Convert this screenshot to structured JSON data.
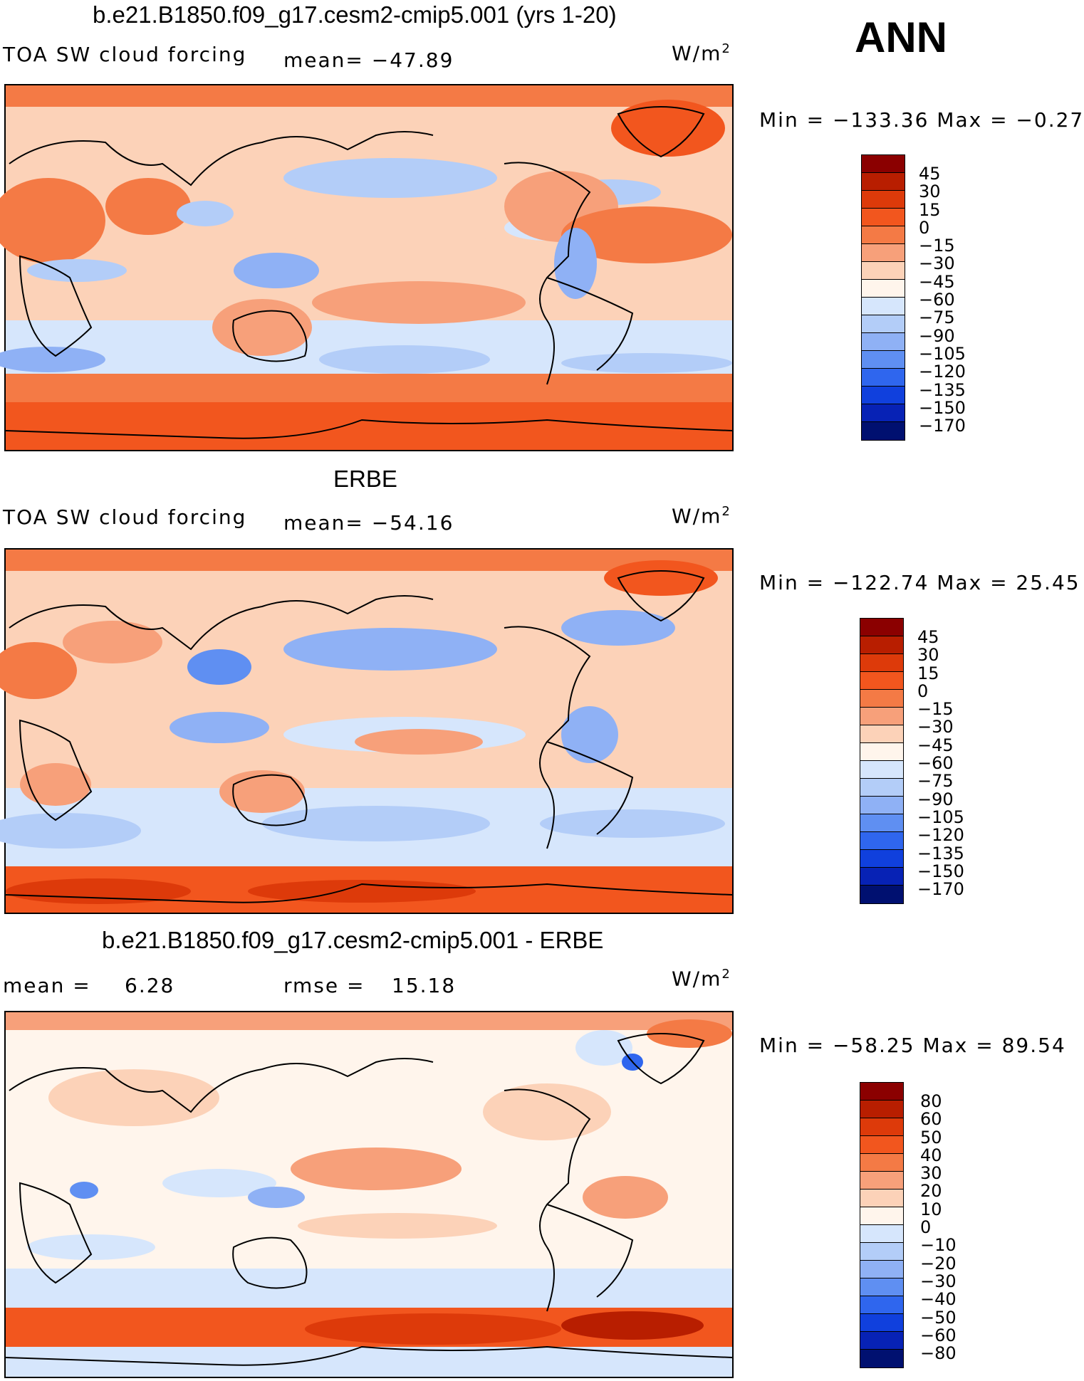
{
  "season": "ANN",
  "units_base": "W/m",
  "units_exp": "2",
  "panels": [
    {
      "title": "b.e21.B1850.f09_g17.cesm2-cmip5.001 (yrs 1-20)",
      "variable": "TOA SW cloud forcing",
      "stat_text": "mean=  −47.89",
      "minmax": "Min  =  −133.36  Max  =    −0.27",
      "colorbar_labels": [
        "45",
        "30",
        "15",
        "0",
        "−15",
        "−30",
        "−45",
        "−60",
        "−75",
        "−90",
        "−105",
        "−120",
        "−135",
        "−150",
        "−170"
      ]
    },
    {
      "title": "ERBE",
      "variable": "TOA SW cloud forcing",
      "stat_text": "mean=  −54.16",
      "minmax": "Min  =  −122.74  Max  =    25.45",
      "colorbar_labels": [
        "45",
        "30",
        "15",
        "0",
        "−15",
        "−30",
        "−45",
        "−60",
        "−75",
        "−90",
        "−105",
        "−120",
        "−135",
        "−150",
        "−170"
      ]
    },
    {
      "title": "b.e21.B1850.f09_g17.cesm2-cmip5.001 - ERBE",
      "mean_label": "mean  =",
      "mean_value": "6.28",
      "rmse_label": "rmse  =",
      "rmse_value": "15.18",
      "minmax": "Min  =  −58.25  Max  =    89.54",
      "colorbar_labels": [
        "80",
        "60",
        "50",
        "40",
        "30",
        "20",
        "10",
        "0",
        "−10",
        "−20",
        "−30",
        "−40",
        "−50",
        "−60",
        "−80"
      ]
    }
  ],
  "colors": {
    "scale": [
      "#8b0000",
      "#b81e00",
      "#dd3a0a",
      "#f2561e",
      "#f47a45",
      "#f7a07a",
      "#fcd2b8",
      "#fff5ec",
      "#d6e6fc",
      "#b3cdf8",
      "#8fb1f5",
      "#5f8ff2",
      "#2f66ee",
      "#1040dd",
      "#0722b5",
      "#001070"
    ],
    "ocean_base": "#fbe3d6",
    "coast": "#000000"
  }
}
